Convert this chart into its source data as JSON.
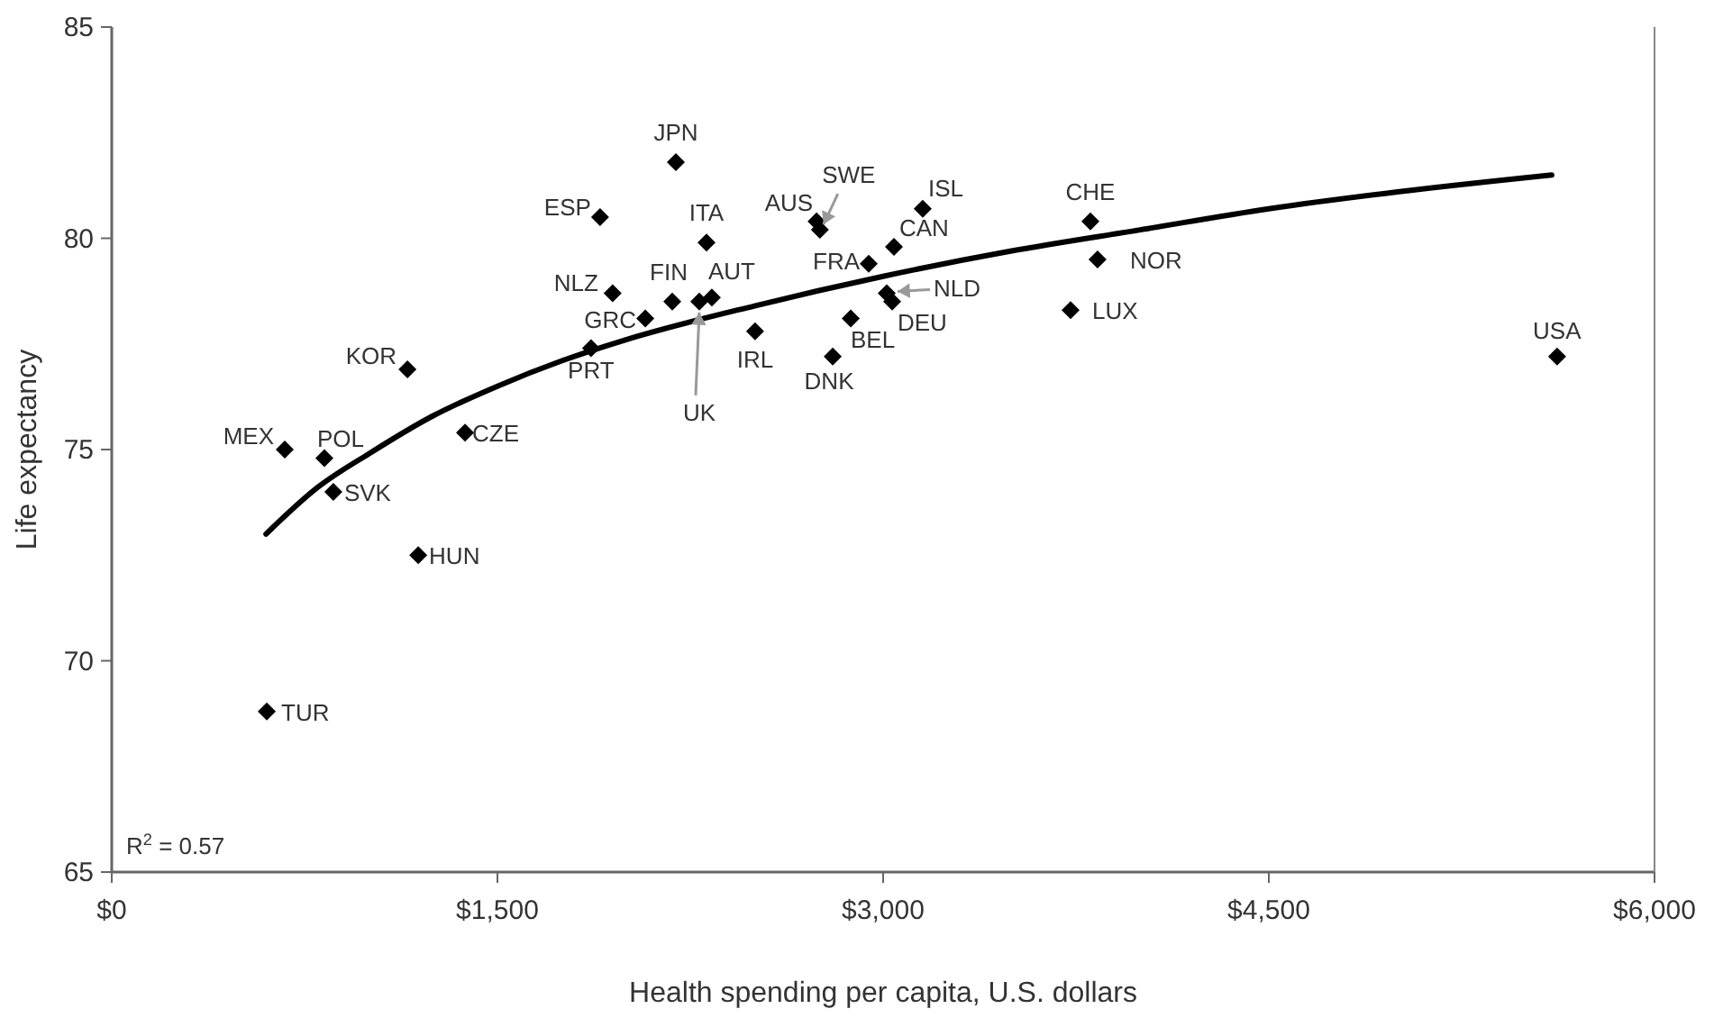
{
  "chart_data": {
    "type": "scatter",
    "xlabel": "Health spending per capita, U.S. dollars",
    "ylabel": "Life expectancy",
    "xlim": [
      0,
      6000
    ],
    "xticks": [
      {
        "value": 0,
        "label": "$0"
      },
      {
        "value": 1500,
        "label": "$1,500"
      },
      {
        "value": 3000,
        "label": "$3,000"
      },
      {
        "value": 4500,
        "label": "$4,500"
      },
      {
        "value": 6000,
        "label": "$6,000"
      }
    ],
    "ylim": [
      65,
      85
    ],
    "yticks": [
      65,
      70,
      75,
      80,
      85
    ],
    "grid": false,
    "marker": "diamond",
    "series": [
      {
        "color": "#000000",
        "x": [
          603,
          673,
          827,
          862,
          1192,
          1150,
          1374,
          1864,
          2075,
          1948,
          1899,
          2180,
          2285,
          2334,
          2313,
          2194,
          2502,
          2804,
          2874,
          2741,
          2754,
          2944,
          3042,
          3154,
          3014,
          3035,
          3806,
          3834,
          3729,
          5621
        ],
        "values": [
          68.8,
          75.0,
          74.8,
          74.0,
          72.5,
          76.9,
          75.4,
          77.4,
          78.1,
          78.7,
          80.5,
          78.5,
          78.5,
          78.6,
          79.9,
          81.8,
          77.8,
          77.2,
          78.1,
          80.4,
          80.2,
          79.4,
          79.8,
          80.7,
          78.7,
          78.5,
          80.4,
          79.5,
          78.3,
          77.2
        ]
      },
      {
        "type": "line",
        "color": "#000000",
        "marker": "none",
        "x": [
          600,
          800,
          1000,
          1250,
          1500,
          1750,
          2000,
          2500,
          3000,
          3500,
          4000,
          4500,
          5000,
          5600
        ],
        "values": [
          73.0,
          74.1,
          74.9,
          75.8,
          76.5,
          77.1,
          77.6,
          78.4,
          79.1,
          79.7,
          80.2,
          80.7,
          81.1,
          81.5
        ]
      }
    ],
    "annotations": [
      {
        "text": "TUR",
        "x": 603,
        "y": 68.8
      },
      {
        "text": "MEX",
        "x": 673,
        "y": 75.0
      },
      {
        "text": "POL",
        "x": 827,
        "y": 74.8
      },
      {
        "text": "SVK",
        "x": 862,
        "y": 74.0
      },
      {
        "text": "HUN",
        "x": 1192,
        "y": 72.5
      },
      {
        "text": "KOR",
        "x": 1150,
        "y": 76.9
      },
      {
        "text": "CZE",
        "x": 1374,
        "y": 75.4
      },
      {
        "text": "PRT",
        "x": 1864,
        "y": 77.4
      },
      {
        "text": "GRC",
        "x": 2075,
        "y": 78.1
      },
      {
        "text": "NLZ",
        "x": 1948,
        "y": 78.7
      },
      {
        "text": "ESP",
        "x": 1899,
        "y": 80.5
      },
      {
        "text": "FIN",
        "x": 2180,
        "y": 78.5
      },
      {
        "text": "UK",
        "x": 2285,
        "y": 78.5
      },
      {
        "text": "AUT",
        "x": 2334,
        "y": 78.6
      },
      {
        "text": "ITA",
        "x": 2313,
        "y": 79.9
      },
      {
        "text": "JPN",
        "x": 2194,
        "y": 81.8
      },
      {
        "text": "IRL",
        "x": 2502,
        "y": 77.8
      },
      {
        "text": "DNK",
        "x": 2804,
        "y": 77.2
      },
      {
        "text": "BEL",
        "x": 2874,
        "y": 78.1
      },
      {
        "text": "AUS",
        "x": 2741,
        "y": 80.4
      },
      {
        "text": "SWE",
        "x": 2754,
        "y": 80.2
      },
      {
        "text": "FRA",
        "x": 2944,
        "y": 79.4
      },
      {
        "text": "CAN",
        "x": 3042,
        "y": 79.8
      },
      {
        "text": "ISL",
        "x": 3154,
        "y": 80.7
      },
      {
        "text": "NLD",
        "x": 3014,
        "y": 78.7
      },
      {
        "text": "DEU",
        "x": 3035,
        "y": 78.5
      },
      {
        "text": "CHE",
        "x": 3806,
        "y": 80.4
      },
      {
        "text": "NOR",
        "x": 3834,
        "y": 79.5
      },
      {
        "text": "LUX",
        "x": 3729,
        "y": 78.3
      },
      {
        "text": "USA",
        "x": 5621,
        "y": 77.2
      },
      "R$^{2}$ = 0.57"
    ]
  }
}
